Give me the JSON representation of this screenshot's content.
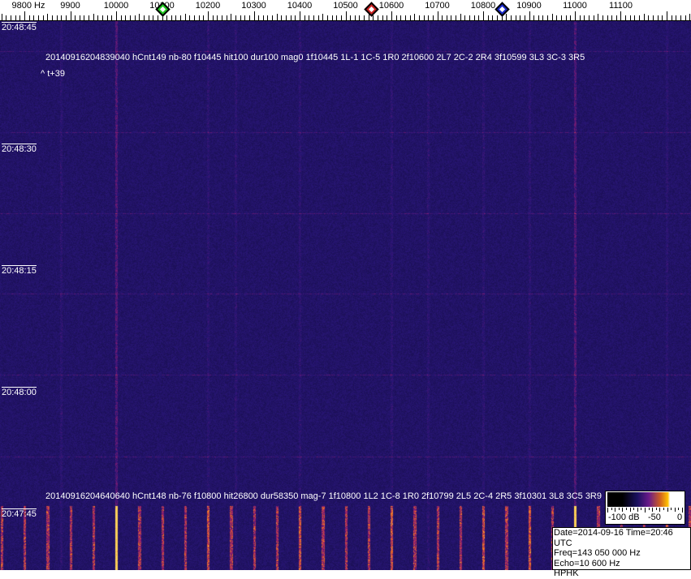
{
  "axis": {
    "unit_label": "9800 Hz",
    "labels": [
      "9900",
      "10000",
      "10100",
      "10200",
      "10300",
      "10400",
      "10500",
      "10600",
      "10700",
      "10800",
      "10900",
      "11000",
      "11100"
    ],
    "markers": [
      {
        "name": "green",
        "freq_hz": 10100,
        "color": "#22cc22"
      },
      {
        "name": "red",
        "freq_hz": 10555,
        "color": "#cc2222"
      },
      {
        "name": "blue",
        "freq_hz": 10840,
        "color": "#1a2acc"
      }
    ]
  },
  "time_labels": [
    "20:48:45",
    "20:48:30",
    "20:48:15",
    "20:48:00",
    "20:47:45"
  ],
  "detections": [
    {
      "text": "20140916204839040 hCnt149 nb-80 f10445 hit100 dur100 mag0 1f10445 1L-1 1C-5 1R0 2f10600 2L7 2C-2 2R4 3f10599 3L3 3C-3 3R5",
      "sub": "^ t+39"
    },
    {
      "text": "20140916204640640 hCnt148 nb-76 f10800 hit26800 dur58350 mag-7 1f10800 1L2 1C-8 1R0 2f10799 2L5 2C-4 2R5 3f10301 3L8 3C5 3R9"
    }
  ],
  "colorbar": {
    "labels": [
      "-100 dB",
      "-50",
      "0"
    ]
  },
  "info": {
    "line1": "Date=2014-09-16 Time=20:46 UTC",
    "line2": "Freq=143 050 000 Hz",
    "line3": "Echo=10 600 Hz",
    "line4": "HPHK"
  },
  "colors": {
    "background": "#2a1c72",
    "signal": "#ffa020"
  }
}
